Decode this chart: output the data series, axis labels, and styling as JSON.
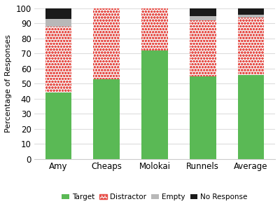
{
  "categories": [
    "Amy",
    "Cheaps",
    "Molokai",
    "Runnels",
    "Average"
  ],
  "target": [
    44,
    53,
    72,
    55,
    56
  ],
  "distractor": [
    44,
    47,
    28,
    37,
    38
  ],
  "empty": [
    5,
    0,
    0,
    3,
    2
  ],
  "no_response": [
    7,
    0,
    0,
    5,
    4
  ],
  "colors": {
    "target": "#5ab955",
    "distractor_base": "#f5f5f5",
    "distractor_dot": "#e8504a",
    "empty": "#b8b8b8",
    "no_response": "#1a1a1a"
  },
  "ylabel": "Percentage of Responses",
  "ylim": [
    0,
    100
  ],
  "yticks": [
    0,
    10,
    20,
    30,
    40,
    50,
    60,
    70,
    80,
    90,
    100
  ],
  "background_color": "#ffffff",
  "bar_width": 0.55,
  "grid_color": "#dddddd"
}
